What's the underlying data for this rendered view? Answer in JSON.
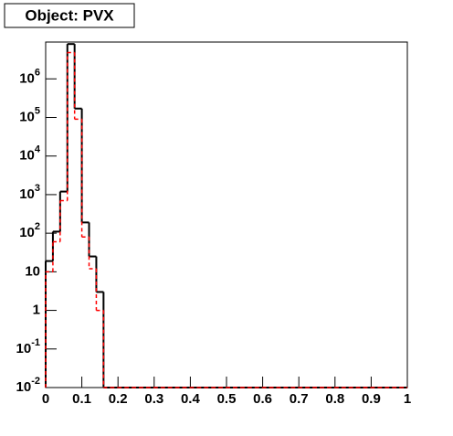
{
  "chart_data": {
    "type": "histogram",
    "title": "Object: PVX",
    "bins": [
      0,
      0.02,
      0.04,
      0.06,
      0.08,
      0.1,
      0.12,
      0.14,
      0.16,
      0.18,
      0.2,
      0.22,
      0.24,
      0.26,
      0.28,
      0.3,
      0.32,
      0.34,
      0.36,
      0.38,
      0.4,
      0.42,
      0.44,
      0.46,
      0.48,
      0.5,
      0.52,
      0.54,
      0.56,
      0.58,
      0.6,
      0.62,
      0.64,
      0.66,
      0.68,
      0.7,
      0.72,
      0.74,
      0.76,
      0.78,
      0.8,
      0.82,
      0.84,
      0.86,
      0.88,
      0.9,
      0.92,
      0.94,
      0.96,
      0.98,
      1
    ],
    "series": [
      {
        "color": "#000000",
        "dashed": false,
        "values": [
          19,
          110,
          1200,
          8000000,
          170000,
          190,
          25,
          3,
          0,
          0,
          0,
          0,
          0,
          0,
          0,
          0,
          0,
          0,
          0,
          0,
          0,
          0,
          0,
          0,
          0,
          0,
          0,
          0,
          0,
          0,
          0,
          0,
          0,
          0,
          0,
          0,
          0,
          0,
          0,
          0,
          0,
          0,
          0,
          0,
          0,
          0,
          0,
          0,
          0,
          0
        ]
      },
      {
        "color": "#ff0000",
        "dashed": true,
        "values": [
          10,
          60,
          700,
          4800000,
          90000,
          80,
          12,
          1,
          0,
          0,
          0,
          0,
          0,
          0,
          0,
          0,
          0,
          0,
          0,
          0,
          0,
          0,
          0,
          0,
          0,
          0,
          0,
          0,
          0,
          0,
          0,
          0,
          0,
          0,
          0,
          0,
          0,
          0,
          0,
          0,
          0,
          0,
          0,
          0,
          0,
          0,
          0,
          0,
          0,
          0
        ]
      }
    ],
    "log_y": true,
    "xlim": [
      0,
      1
    ],
    "xticks": [
      0,
      0.1,
      0.2,
      0.3,
      0.4,
      0.5,
      0.6,
      0.7,
      0.8,
      0.9,
      1
    ],
    "ylim": [
      0.01,
      9000000
    ],
    "yticks": [
      {
        "value": 0.01,
        "label": "10",
        "exponent": "-2"
      },
      {
        "value": 0.1,
        "label": "10",
        "exponent": "-1"
      },
      1,
      10,
      {
        "value": 100,
        "label": "10",
        "exponent": "2"
      },
      {
        "value": 1000,
        "label": "10",
        "exponent": "3"
      },
      {
        "value": 10000,
        "label": "10",
        "exponent": "4"
      },
      {
        "value": 100000,
        "label": "10",
        "exponent": "5"
      },
      {
        "value": 1000000,
        "label": "10",
        "exponent": "6"
      }
    ]
  }
}
